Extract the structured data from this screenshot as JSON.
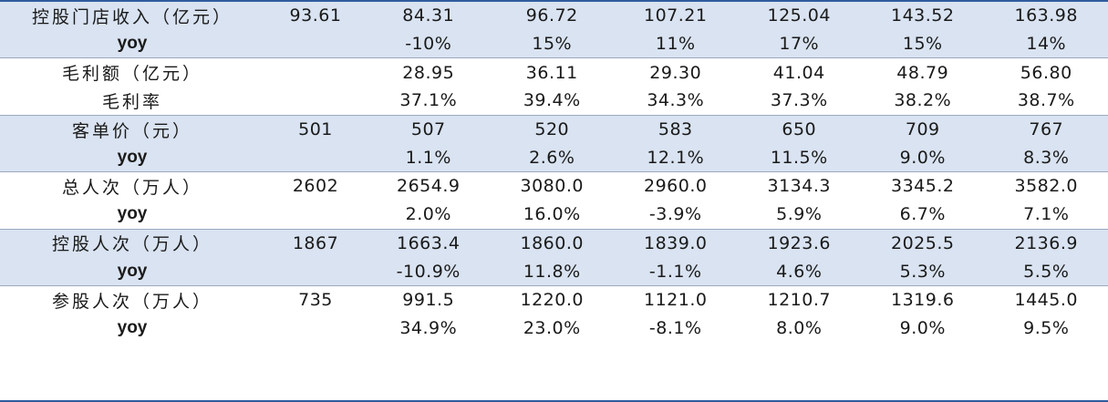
{
  "rows": [
    {
      "label": "控股门店收入（亿元）",
      "values": [
        "93.61",
        "84.31",
        "96.72",
        "107.21",
        "125.04",
        "143.52",
        "163.98"
      ]
    },
    {
      "label": "yoy",
      "values": [
        "",
        "-10%",
        "15%",
        "11%",
        "17%",
        "15%",
        "14%"
      ]
    },
    {
      "label": "毛利额（亿元）",
      "values": [
        "",
        "28.95",
        "36.11",
        "29.30",
        "41.04",
        "48.79",
        "56.80"
      ]
    },
    {
      "label": "毛利率",
      "values": [
        "",
        "37.1%",
        "39.4%",
        "34.3%",
        "37.3%",
        "38.2%",
        "38.7%"
      ]
    },
    {
      "label": "客单价（元）",
      "values": [
        "501",
        "507",
        "520",
        "583",
        "650",
        "709",
        "767"
      ]
    },
    {
      "label": "yoy",
      "values": [
        "",
        "1.1%",
        "2.6%",
        "12.1%",
        "11.5%",
        "9.0%",
        "8.3%"
      ]
    },
    {
      "label": "总人次（万人）",
      "values": [
        "2602",
        "2654.9",
        "3080.0",
        "2960.0",
        "3134.3",
        "3345.2",
        "3582.0"
      ]
    },
    {
      "label": "yoy",
      "values": [
        "",
        "2.0%",
        "16.0%",
        "-3.9%",
        "5.9%",
        "6.7%",
        "7.1%"
      ]
    },
    {
      "label": "控股人次（万人）",
      "values": [
        "1867",
        "1663.4",
        "1860.0",
        "1839.0",
        "1923.6",
        "2025.5",
        "2136.9"
      ]
    },
    {
      "label": "yoy",
      "values": [
        "",
        "-10.9%",
        "11.8%",
        "-1.1%",
        "4.6%",
        "5.3%",
        "5.5%"
      ]
    },
    {
      "label": "参股人次（万人）",
      "values": [
        "735",
        "991.5",
        "1220.0",
        "1121.0",
        "1210.7",
        "1319.6",
        "1445.0"
      ]
    },
    {
      "label": "yoy",
      "values": [
        "",
        "34.9%",
        "23.0%",
        "-8.1%",
        "8.0%",
        "9.0%",
        "9.5%"
      ]
    }
  ],
  "colors": {
    "band": "#d9e3f1",
    "rule": "#2f5d9e",
    "divider": "#9aa9bf"
  }
}
